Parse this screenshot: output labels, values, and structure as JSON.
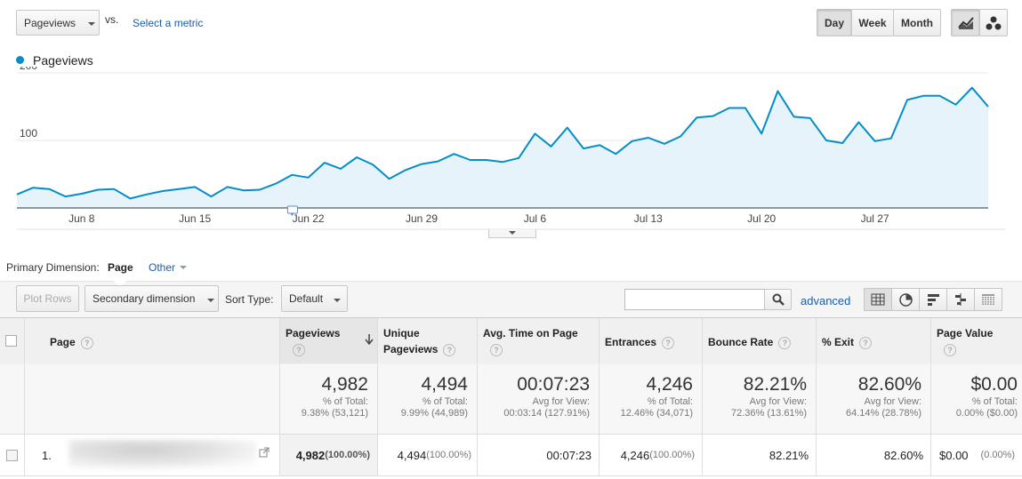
{
  "toolbar": {
    "metric_select": "Pageviews",
    "vs_label": "vs.",
    "select_metric_link": "Select a metric",
    "period_buttons": [
      "Day",
      "Week",
      "Month"
    ],
    "active_period": "Day"
  },
  "legend": {
    "series_name": "Pageviews",
    "series_color": "#058dc7"
  },
  "chart_data": {
    "type": "area",
    "series": [
      {
        "name": "Pageviews",
        "color": "#058dc7",
        "values": [
          20,
          30,
          28,
          17,
          21,
          27,
          28,
          14,
          20,
          25,
          28,
          31,
          17,
          31,
          26,
          27,
          36,
          49,
          45,
          67,
          58,
          75,
          64,
          43,
          56,
          65,
          69,
          80,
          71,
          71,
          68,
          74,
          110,
          91,
          119,
          88,
          93,
          80,
          99,
          104,
          95,
          106,
          134,
          136,
          148,
          148,
          110,
          173,
          135,
          133,
          100,
          96,
          127,
          99,
          103,
          160,
          166,
          166,
          153,
          178,
          150
        ],
        "x_tick_labels": [
          "Jun 8",
          "Jun 15",
          "Jun 22",
          "Jun 29",
          "Jul 6",
          "Jul 13",
          "Jul 20",
          "Jul 27"
        ]
      }
    ],
    "y_tick_labels": [
      "200",
      "100"
    ],
    "ylim": [
      0,
      200
    ]
  },
  "dimension": {
    "label": "Primary Dimension:",
    "active": "Page",
    "other": "Other"
  },
  "controls": {
    "plot_rows": "Plot Rows",
    "secondary_dimension": "Secondary dimension",
    "sort_type_label": "Sort Type:",
    "sort_type_value": "Default",
    "search_placeholder": "",
    "advanced": "advanced"
  },
  "table": {
    "headers": {
      "page": "Page",
      "pageviews": "Pageviews",
      "unique_1": "Unique",
      "unique_2": "Pageviews",
      "avg_time": "Avg. Time on Page",
      "entrances": "Entrances",
      "bounce_rate": "Bounce Rate",
      "exit": "% Exit",
      "page_value": "Page Value"
    },
    "totals": {
      "pageviews": {
        "big": "4,982",
        "l1": "% of Total:",
        "l2": "9.38% (53,121)"
      },
      "unique": {
        "big": "4,494",
        "l1": "% of Total:",
        "l2": "9.99% (44,989)"
      },
      "avg_time": {
        "big": "00:07:23",
        "l1": "Avg for View:",
        "l2": "00:03:14 (127.91%)"
      },
      "entrances": {
        "big": "4,246",
        "l1": "% of Total:",
        "l2": "12.46% (34,071)"
      },
      "bounce_rate": {
        "big": "82.21%",
        "l1": "Avg for View:",
        "l2": "72.36% (13.61%)"
      },
      "exit": {
        "big": "82.60%",
        "l1": "Avg for View:",
        "l2": "64.14% (28.78%)"
      },
      "page_value": {
        "big": "$0.00",
        "l1": "% of Total:",
        "l2": "0.00% ($0.00)"
      }
    },
    "row": {
      "index": "1.",
      "pageviews": "4,982",
      "pageviews_pct": "(100.00%)",
      "unique": "4,494",
      "unique_pct": "(100.00%)",
      "avg_time": "00:07:23",
      "entrances": "4,246",
      "entrances_pct": "(100.00%)",
      "bounce_rate": "82.21%",
      "exit": "82.60%",
      "page_value": "$0.00",
      "page_value_pct": "(0.00%)"
    }
  }
}
